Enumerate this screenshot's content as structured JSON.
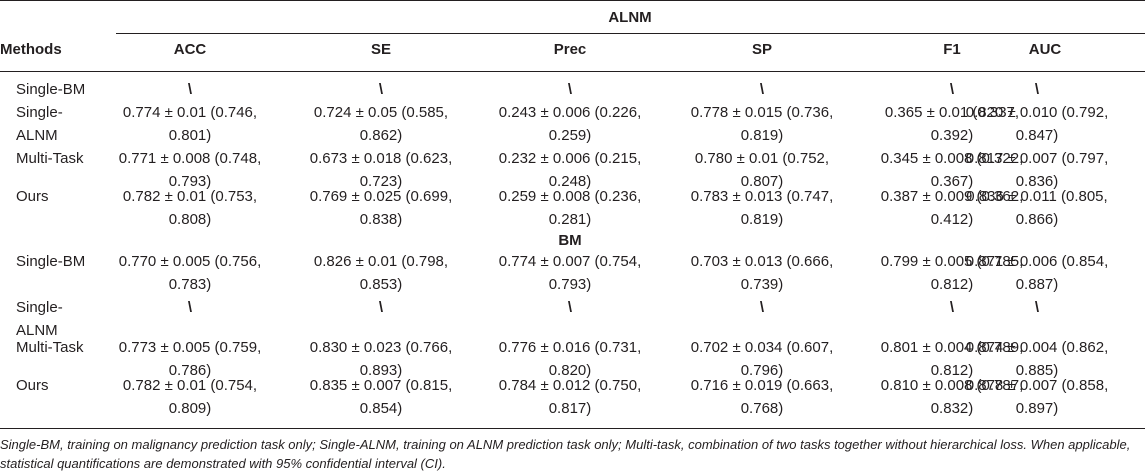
{
  "table": {
    "methods_header": "Methods",
    "group_alnm": "ALNM",
    "group_bm": "BM",
    "columns": [
      "ACC",
      "SE",
      "Prec",
      "SP",
      "F1",
      "AUC"
    ],
    "alnm_rows": [
      {
        "method": [
          "Single-BM"
        ],
        "cells": [
          [
            "\\"
          ],
          [
            "\\"
          ],
          [
            "\\"
          ],
          [
            "\\"
          ],
          [
            "\\"
          ],
          [
            "\\"
          ]
        ]
      },
      {
        "method": [
          "Single-",
          "ALNM"
        ],
        "cells": [
          [
            "0.774 ± 0.01 (0.746,",
            "0.801)"
          ],
          [
            "0.724 ± 0.05 (0.585,",
            "0.862)"
          ],
          [
            "0.243 ± 0.006 (0.226,",
            "0.259)"
          ],
          [
            "0.778 ± 0.015 (0.736,",
            "0.819)"
          ],
          [
            "0.365 ± 0.01 (0.337,",
            "0.392)"
          ],
          [
            "0.820 ± 0.010 (0.792,",
            "0.847)"
          ]
        ]
      },
      {
        "method": [
          "Multi-Task"
        ],
        "cells": [
          [
            "0.771 ± 0.008 (0.748,",
            "0.793)"
          ],
          [
            "0.673 ± 0.018 (0.623,",
            "0.723)"
          ],
          [
            "0.232 ± 0.006 (0.215,",
            "0.248)"
          ],
          [
            "0.780 ± 0.01 (0.752,",
            "0.807)"
          ],
          [
            "0.345 ± 0.008 (0.322,",
            "0.367)"
          ],
          [
            "0.817 ± 0.007 (0.797,",
            "0.836)"
          ]
        ]
      },
      {
        "method": [
          "Ours"
        ],
        "cells": [
          [
            "0.782 ± 0.01 (0.753,",
            "0.808)"
          ],
          [
            "0.769 ± 0.025 (0.699,",
            "0.838)"
          ],
          [
            "0.259 ± 0.008 (0.236,",
            "0.281)"
          ],
          [
            "0.783 ± 0.013 (0.747,",
            "0.819)"
          ],
          [
            "0.387 ± 0.009 (0.362,",
            "0.412)"
          ],
          [
            "0.836 ± 0.011 (0.805,",
            "0.866)"
          ]
        ]
      }
    ],
    "bm_rows": [
      {
        "method": [
          "Single-BM"
        ],
        "cells": [
          [
            "0.770 ± 0.005 (0.756,",
            "0.783)"
          ],
          [
            "0.826 ± 0.01 (0.798,",
            "0.853)"
          ],
          [
            "0.774 ± 0.007 (0.754,",
            "0.793)"
          ],
          [
            "0.703 ± 0.013 (0.666,",
            "0.739)"
          ],
          [
            "0.799 ± 0.005 (0.785,",
            "0.812)"
          ],
          [
            "0.871 ± 0.006 (0.854,",
            "0.887)"
          ]
        ]
      },
      {
        "method": [
          "Single-",
          "ALNM"
        ],
        "cells": [
          [
            "\\"
          ],
          [
            "\\"
          ],
          [
            "\\"
          ],
          [
            "\\"
          ],
          [
            "\\"
          ],
          [
            "\\"
          ]
        ]
      },
      {
        "method": [
          "Multi-Task"
        ],
        "cells": [
          [
            "0.773 ± 0.005 (0.759,",
            "0.786)"
          ],
          [
            "0.830 ± 0.023 (0.766,",
            "0.893)"
          ],
          [
            "0.776 ± 0.016 (0.731,",
            "0.820)"
          ],
          [
            "0.702 ± 0.034 (0.607,",
            "0.796)"
          ],
          [
            "0.801 ± 0.004 (0.789,",
            "0.812)"
          ],
          [
            "0.874 ± 0.004 (0.862,",
            "0.885)"
          ]
        ]
      },
      {
        "method": [
          "Ours"
        ],
        "cells": [
          [
            "0.782 ± 0.01 (0.754,",
            "0.809)"
          ],
          [
            "0.835 ± 0.007 (0.815,",
            "0.854)"
          ],
          [
            "0.784 ± 0.012 (0.750,",
            "0.817)"
          ],
          [
            "0.716 ± 0.019 (0.663,",
            "0.768)"
          ],
          [
            "0.810 ± 0.008 (0.787,",
            "0.832)"
          ],
          [
            "0.878 ± 0.007 (0.858,",
            "0.897)"
          ]
        ]
      }
    ],
    "footnote": "Single-BM, training on malignancy prediction task only; Single-ALNM, training on ALNM prediction task only; Multi-task, combination of two tasks together without hierarchical loss. When applicable, statistical quantifications are demonstrated with 95% confidential interval (CI)."
  }
}
